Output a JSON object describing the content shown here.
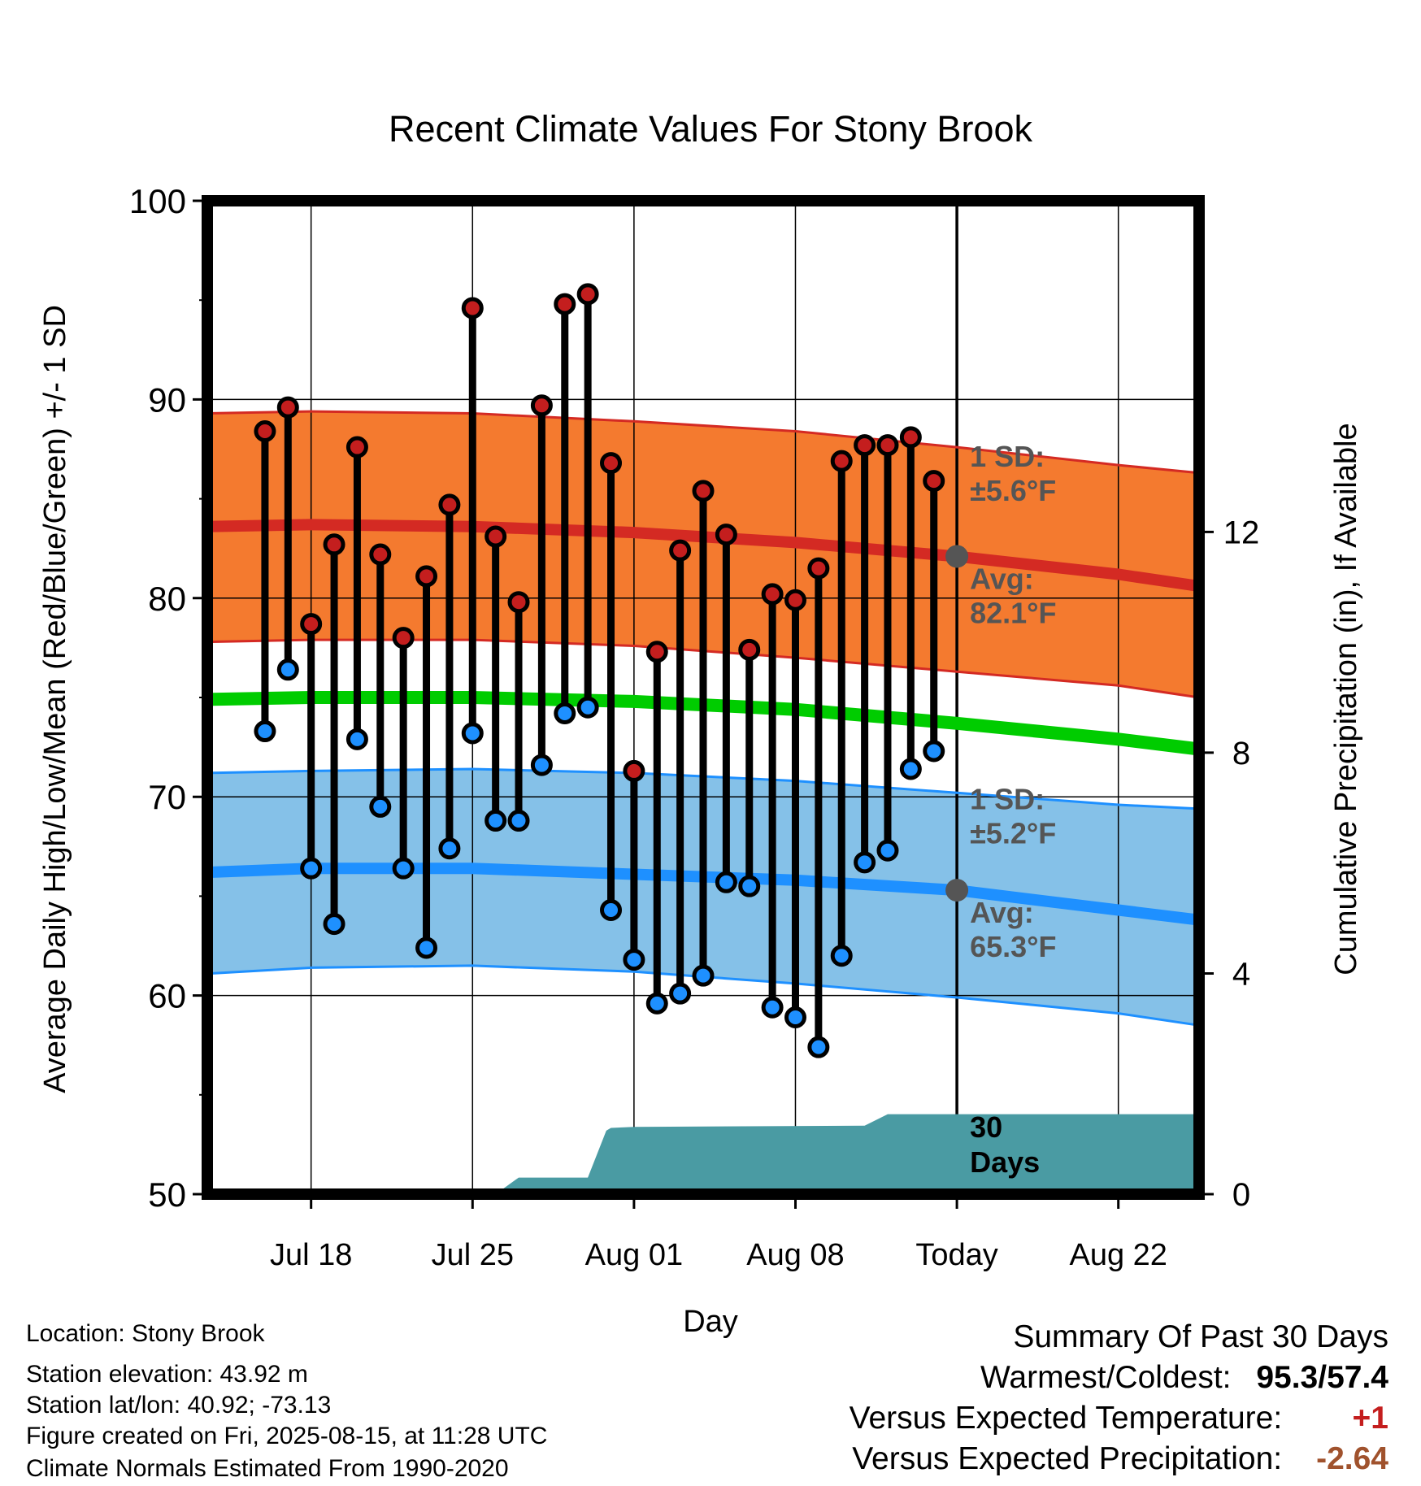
{
  "chart_data": {
    "type": "line",
    "title": "Recent Climate Values For Stony Brook",
    "xlabel": "Day",
    "ylabel": "Average Daily High/Low/Mean (Red/Blue/Green) +/- 1 SD",
    "y2label": "Cumulative Precipitation (in), If Available",
    "ylim": [
      50,
      100
    ],
    "y2lim": [
      0,
      18
    ],
    "xlim_days": [
      -32.5,
      10.5
    ],
    "yticks": [
      50,
      60,
      70,
      80,
      90,
      100
    ],
    "y2ticks": [
      0,
      4,
      8,
      12
    ],
    "grid": true,
    "xticks": [
      {
        "day": -28,
        "label": "Jul 18"
      },
      {
        "day": -21,
        "label": "Jul 25"
      },
      {
        "day": -14,
        "label": "Aug 01"
      },
      {
        "day": -7,
        "label": "Aug 08"
      },
      {
        "day": 0,
        "label": "Today"
      },
      {
        "day": 7,
        "label": "Aug 22"
      }
    ],
    "days": [
      "Jul 16",
      "Jul 17",
      "Jul 18",
      "Jul 19",
      "Jul 20",
      "Jul 21",
      "Jul 22",
      "Jul 23",
      "Jul 24",
      "Jul 25",
      "Jul 26",
      "Jul 27",
      "Jul 28",
      "Jul 29",
      "Jul 30",
      "Jul 31",
      "Aug 01",
      "Aug 02",
      "Aug 03",
      "Aug 04",
      "Aug 05",
      "Aug 06",
      "Aug 07",
      "Aug 08",
      "Aug 09",
      "Aug 10",
      "Aug 11",
      "Aug 12",
      "Aug 13",
      "Aug 14"
    ],
    "day_offsets": [
      -30,
      -29,
      -28,
      -27,
      -26,
      -25,
      -24,
      -23,
      -22,
      -21,
      -20,
      -19,
      -18,
      -17,
      -16,
      -15,
      -14,
      -13,
      -12,
      -11,
      -10,
      -9,
      -8,
      -7,
      -6,
      -5,
      -4,
      -3,
      -2,
      -1
    ],
    "observed_high": [
      88.4,
      89.6,
      78.7,
      82.7,
      87.6,
      82.2,
      78.0,
      81.1,
      84.7,
      94.6,
      83.1,
      79.8,
      89.7,
      94.8,
      95.3,
      86.8,
      71.3,
      77.3,
      82.4,
      85.4,
      83.2,
      77.4,
      80.2,
      79.9,
      81.5,
      86.9,
      87.7,
      87.7,
      88.1,
      85.9
    ],
    "observed_low": [
      73.3,
      76.4,
      66.4,
      63.6,
      72.9,
      69.5,
      66.4,
      62.4,
      67.4,
      73.2,
      68.8,
      68.8,
      71.6,
      74.2,
      74.5,
      64.3,
      61.8,
      59.6,
      60.1,
      61.0,
      65.7,
      65.5,
      59.4,
      58.9,
      57.4,
      62.0,
      66.7,
      67.3,
      71.4,
      72.3
    ],
    "normal_x": [
      -32.5,
      -28,
      -21,
      -14,
      -7,
      0,
      7,
      10.5
    ],
    "normal_high_mean": [
      83.6,
      83.7,
      83.6,
      83.3,
      82.8,
      82.1,
      81.2,
      80.6
    ],
    "normal_high_upper": [
      89.3,
      89.4,
      89.3,
      88.9,
      88.4,
      87.6,
      86.7,
      86.3
    ],
    "normal_high_lower": [
      77.8,
      77.9,
      77.9,
      77.6,
      77.0,
      76.3,
      75.6,
      75.0
    ],
    "normal_mean": [
      74.9,
      75.0,
      75.0,
      74.8,
      74.4,
      73.7,
      72.9,
      72.4
    ],
    "normal_low_mean": [
      66.2,
      66.4,
      66.4,
      66.1,
      65.8,
      65.3,
      64.3,
      63.8
    ],
    "normal_low_upper": [
      71.2,
      71.3,
      71.4,
      71.2,
      70.8,
      70.2,
      69.6,
      69.4
    ],
    "normal_low_lower": [
      61.1,
      61.4,
      61.5,
      61.2,
      60.6,
      59.9,
      59.1,
      58.5
    ],
    "today_avg_high": 82.1,
    "today_avg_low": 65.3,
    "precip_x": [
      -30,
      -22,
      -21,
      -20,
      -19,
      -18,
      -17,
      -16,
      -15.2,
      -15,
      -14,
      -4,
      -3,
      -2,
      -1,
      0,
      10.5
    ],
    "precip_cum": [
      0.0,
      0.0,
      0.0,
      0.0,
      0.3,
      0.3,
      0.3,
      0.3,
      1.15,
      1.2,
      1.22,
      1.24,
      1.45,
      1.45,
      1.45,
      1.45,
      1.45
    ],
    "annotations": {
      "high_sd_label": "1 SD:",
      "high_sd_value": "±5.6°F",
      "high_avg_label": "Avg:",
      "high_avg_value": "82.1°F",
      "low_sd_label": "1 SD:",
      "low_sd_value": "±5.2°F",
      "low_avg_label": "Avg:",
      "low_avg_value": "65.3°F",
      "period_line1": "30",
      "period_line2": "Days"
    },
    "colors": {
      "high_band": "#f47a2f",
      "high_line": "#d42a23",
      "high_edge": "#d42a23",
      "mean_line": "#00cc00",
      "low_band": "#85c1e8",
      "low_line": "#1e90ff",
      "low_edge": "#1e90ff",
      "precip": "#4a9ba3",
      "high_dot": "#c41e1e",
      "low_dot": "#1e90ff",
      "today_dot": "#555555",
      "annot": "#555555"
    }
  },
  "info": {
    "location": "Location: Stony Brook",
    "elevation": "Station elevation: 43.92 m",
    "latlon": "Station lat/lon: 40.92; -73.13",
    "created": "Figure created on Fri, 2025-08-15, at 11:28 UTC",
    "normals": "Climate Normals Estimated From 1990-2020"
  },
  "summary": {
    "title": "Summary Of Past 30 Days",
    "warm_cold_label": "Warmest/Coldest:",
    "warm_cold_value": "95.3/57.4",
    "temp_label": "Versus Expected Temperature:",
    "temp_value": "+1",
    "precip_label": "Versus Expected Precipitation:",
    "precip_value": "-2.64",
    "temp_color": "#c41e1e",
    "precip_color": "#a0522d"
  }
}
